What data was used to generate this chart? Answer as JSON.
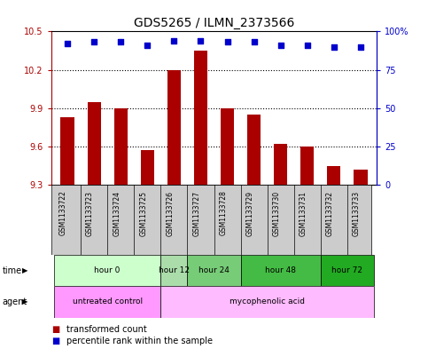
{
  "title": "GDS5265 / ILMN_2373566",
  "samples": [
    "GSM1133722",
    "GSM1133723",
    "GSM1133724",
    "GSM1133725",
    "GSM1133726",
    "GSM1133727",
    "GSM1133728",
    "GSM1133729",
    "GSM1133730",
    "GSM1133731",
    "GSM1133732",
    "GSM1133733"
  ],
  "bar_values": [
    9.83,
    9.95,
    9.9,
    9.57,
    10.2,
    10.35,
    9.9,
    9.85,
    9.62,
    9.6,
    9.45,
    9.42
  ],
  "percentile_values": [
    92,
    93,
    93,
    91,
    94,
    94,
    93,
    93,
    91,
    91,
    90,
    90
  ],
  "bar_color": "#AA0000",
  "percentile_color": "#0000CC",
  "ylim_left": [
    9.3,
    10.5
  ],
  "ylim_right": [
    0,
    100
  ],
  "yticks_left": [
    9.3,
    9.6,
    9.9,
    10.2,
    10.5
  ],
  "yticks_right": [
    0,
    25,
    50,
    75,
    100
  ],
  "ytick_labels_right": [
    "0",
    "25",
    "50",
    "75",
    "100%"
  ],
  "time_groups": [
    {
      "label": "hour 0",
      "start": 0,
      "end": 3,
      "color": "#ccffcc"
    },
    {
      "label": "hour 12",
      "start": 4,
      "end": 4,
      "color": "#aaddaa"
    },
    {
      "label": "hour 24",
      "start": 5,
      "end": 6,
      "color": "#77cc77"
    },
    {
      "label": "hour 48",
      "start": 7,
      "end": 9,
      "color": "#44bb44"
    },
    {
      "label": "hour 72",
      "start": 10,
      "end": 11,
      "color": "#22aa22"
    }
  ],
  "agent_groups": [
    {
      "label": "untreated control",
      "start": 0,
      "end": 3,
      "color": "#ff99ff"
    },
    {
      "label": "mycophenolic acid",
      "start": 4,
      "end": 11,
      "color": "#ffbbff"
    }
  ],
  "sample_bg_color": "#cccccc",
  "background_color": "#ffffff",
  "bar_width": 0.5
}
